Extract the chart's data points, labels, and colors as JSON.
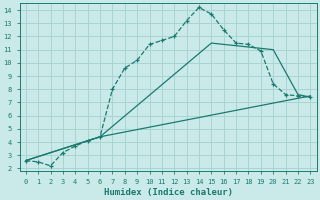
{
  "xlabel": "Humidex (Indice chaleur)",
  "bg_color": "#caeaea",
  "grid_color": "#aad4d4",
  "line_color": "#1a7a6e",
  "xlim": [
    -0.5,
    23.5
  ],
  "ylim": [
    1.8,
    14.5
  ],
  "xticks": [
    0,
    1,
    2,
    3,
    4,
    5,
    6,
    7,
    8,
    9,
    10,
    11,
    12,
    13,
    14,
    15,
    16,
    17,
    18,
    19,
    20,
    21,
    22,
    23
  ],
  "yticks": [
    2,
    3,
    4,
    5,
    6,
    7,
    8,
    9,
    10,
    11,
    12,
    13,
    14
  ],
  "curve1_x": [
    0,
    1,
    2,
    3,
    4,
    5,
    6,
    7,
    8,
    9,
    10,
    11,
    12,
    13,
    14,
    15,
    16,
    17,
    18,
    19,
    20,
    21,
    22,
    23
  ],
  "curve1_y": [
    2.6,
    2.5,
    2.2,
    3.2,
    3.7,
    4.1,
    4.4,
    8.0,
    9.6,
    10.2,
    11.4,
    11.7,
    12.0,
    13.2,
    14.2,
    13.7,
    12.5,
    11.5,
    11.4,
    10.9,
    8.4,
    7.6,
    7.5,
    7.4
  ],
  "curve2_x": [
    0,
    6,
    23
  ],
  "curve2_y": [
    2.6,
    4.4,
    7.5
  ],
  "curve3_x": [
    0,
    6,
    15,
    20,
    22,
    23
  ],
  "curve3_y": [
    2.6,
    4.4,
    11.5,
    11.0,
    7.6,
    7.4
  ]
}
